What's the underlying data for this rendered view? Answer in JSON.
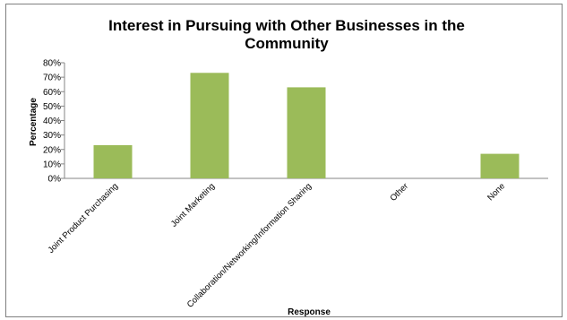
{
  "chart_data": {
    "type": "bar",
    "title_line1": "Interest in Pursuing with Other Businesses in the",
    "title_line2": "Community",
    "xlabel": "Response",
    "ylabel": "Percentage",
    "categories": [
      "Joint Product Purchasing",
      "Joint Marketing",
      "Collaboration/Networking/Information Sharing",
      "Other",
      "None"
    ],
    "values": [
      23,
      73,
      63,
      0,
      17
    ],
    "ylim": [
      0,
      80
    ],
    "yticks": [
      "0%",
      "10%",
      "20%",
      "30%",
      "40%",
      "50%",
      "60%",
      "70%",
      "80%"
    ],
    "bar_color": "#9bbb59",
    "grid": false,
    "legend": "none"
  }
}
